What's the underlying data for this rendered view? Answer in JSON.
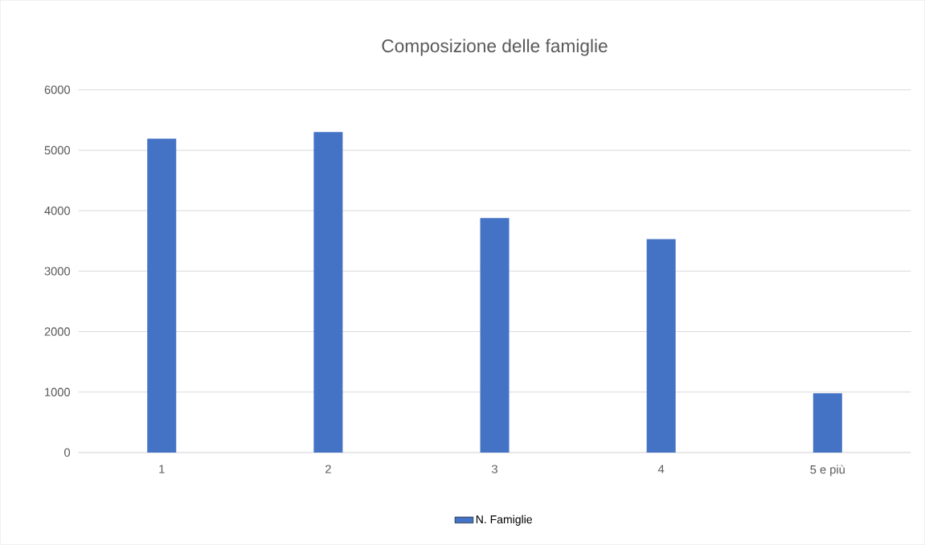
{
  "chart_data": {
    "type": "bar",
    "title": "Composizione delle famiglie",
    "categories": [
      "1",
      "2",
      "3",
      "4",
      "5 e più"
    ],
    "series": [
      {
        "name": "N. Famiglie",
        "color": "#4472c4",
        "values": [
          5190,
          5300,
          3880,
          3530,
          980
        ]
      }
    ],
    "ylim": [
      0,
      6000
    ],
    "yticks": [
      0,
      1000,
      2000,
      3000,
      4000,
      5000,
      6000
    ],
    "grid": "y",
    "legend": "bottom"
  }
}
